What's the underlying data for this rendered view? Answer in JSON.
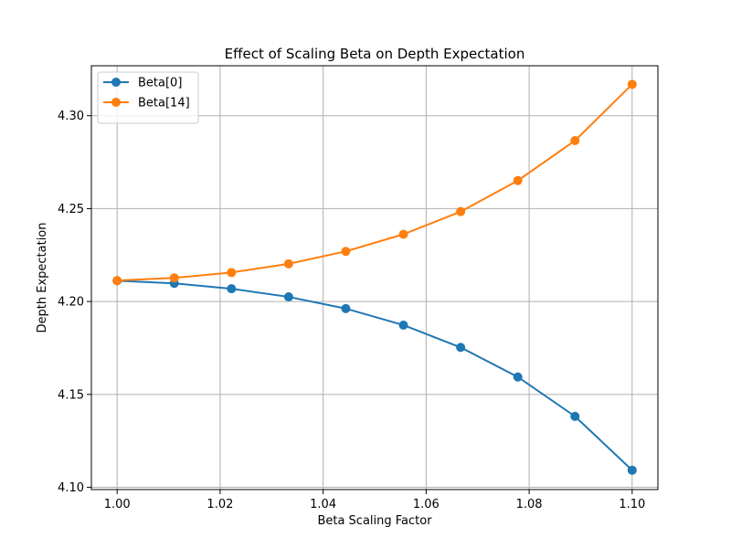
{
  "chart_data": {
    "type": "line",
    "title": "Effect of Scaling Beta on Depth Expectation",
    "xlabel": "Beta Scaling Factor",
    "ylabel": "Depth Expectation",
    "x": [
      1.0,
      1.0111,
      1.0222,
      1.0333,
      1.0444,
      1.0556,
      1.0667,
      1.0778,
      1.0889,
      1.1
    ],
    "series": [
      {
        "name": "Beta[0]",
        "color": "#1f77b4",
        "values": [
          4.2112,
          4.2098,
          4.2069,
          4.2025,
          4.1962,
          4.1873,
          4.1753,
          4.1594,
          4.1382,
          4.1092
        ]
      },
      {
        "name": "Beta[14]",
        "color": "#ff7f0e",
        "values": [
          4.2113,
          4.2127,
          4.2156,
          4.2203,
          4.227,
          4.2362,
          4.2484,
          4.2651,
          4.2866,
          4.3169
        ]
      }
    ],
    "xlim": [
      0.995,
      1.105
    ],
    "ylim": [
      4.0988,
      4.3269
    ],
    "xticks": [
      "1.00",
      "1.02",
      "1.04",
      "1.06",
      "1.08",
      "1.10"
    ],
    "yticks": [
      "4.10",
      "4.15",
      "4.20",
      "4.25",
      "4.30"
    ],
    "grid": true,
    "legend_position": "top-left"
  }
}
